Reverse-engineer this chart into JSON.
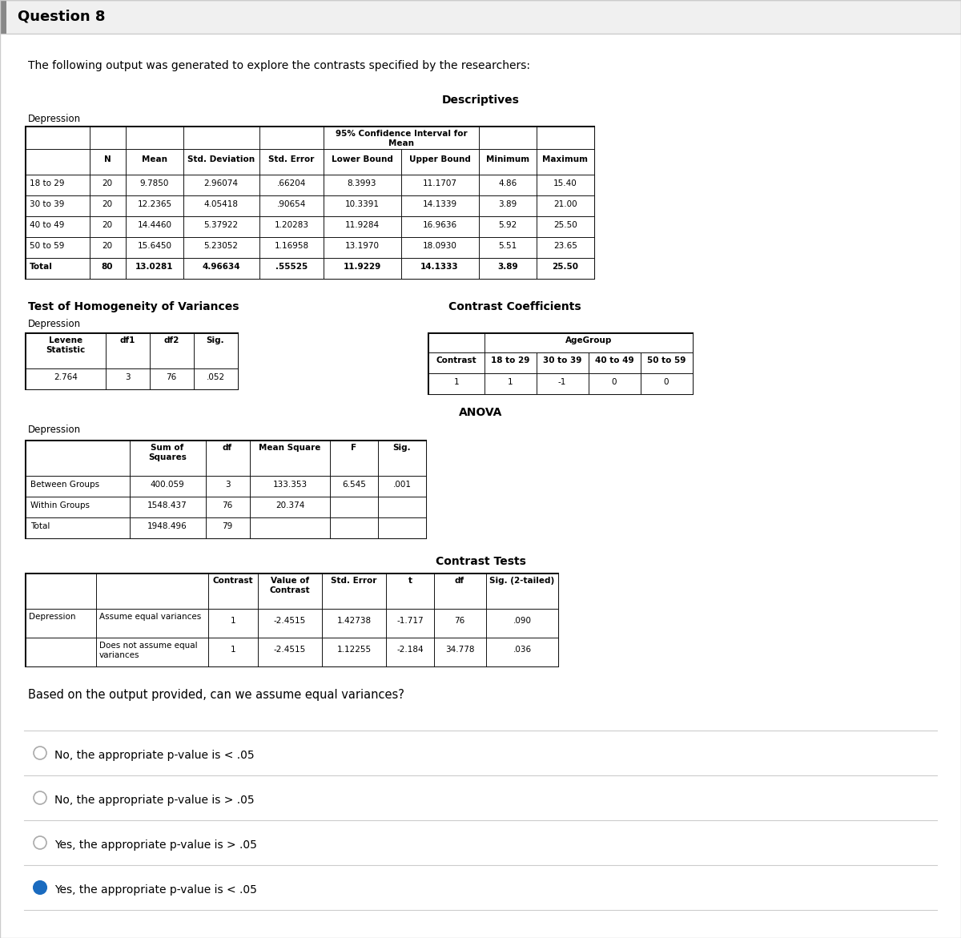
{
  "title": "Question 8",
  "intro_text": "The following output was generated to explore the contrasts specified by the researchers:",
  "descriptives_title": "Descriptives",
  "descriptives_label": "Depression",
  "desc_rows": [
    [
      "18 to 29",
      "20",
      "9.7850",
      "2.96074",
      ".66204",
      "8.3993",
      "11.1707",
      "4.86",
      "15.40"
    ],
    [
      "30 to 39",
      "20",
      "12.2365",
      "4.05418",
      ".90654",
      "10.3391",
      "14.1339",
      "3.89",
      "21.00"
    ],
    [
      "40 to 49",
      "20",
      "14.4460",
      "5.37922",
      "1.20283",
      "11.9284",
      "16.9636",
      "5.92",
      "25.50"
    ],
    [
      "50 to 59",
      "20",
      "15.6450",
      "5.23052",
      "1.16958",
      "13.1970",
      "18.0930",
      "5.51",
      "23.65"
    ],
    [
      "Total",
      "80",
      "13.0281",
      "4.96634",
      ".55525",
      "11.9229",
      "14.1333",
      "3.89",
      "25.50"
    ]
  ],
  "homogeneity_title": "Test of Homogeneity of Variances",
  "homogeneity_label": "Depression",
  "homogeneity_headers": [
    "Levene\nStatistic",
    "df1",
    "df2",
    "Sig."
  ],
  "homogeneity_row": [
    "2.764",
    "3",
    "76",
    ".052"
  ],
  "contrast_coeff_title": "Contrast Coefficients",
  "contrast_coeff_subheader": "AgeGroup",
  "contrast_coeff_headers": [
    "Contrast",
    "18 to 29",
    "30 to 39",
    "40 to 49",
    "50 to 59"
  ],
  "contrast_coeff_row": [
    "1",
    "1",
    "-1",
    "0",
    "0"
  ],
  "anova_title": "ANOVA",
  "anova_label": "Depression",
  "anova_rows": [
    [
      "Between Groups",
      "400.059",
      "3",
      "133.353",
      "6.545",
      ".001"
    ],
    [
      "Within Groups",
      "1548.437",
      "76",
      "20.374",
      "",
      ""
    ],
    [
      "Total",
      "1948.496",
      "79",
      "",
      "",
      ""
    ]
  ],
  "contrast_tests_title": "Contrast Tests",
  "contrast_tests_rows": [
    [
      "Depression",
      "Assume equal variances",
      "1",
      "-2.4515",
      "1.42738",
      "-1.717",
      "76",
      ".090"
    ],
    [
      "",
      "Does not assume equal\nvariances",
      "1",
      "-2.4515",
      "1.12255",
      "-2.184",
      "34.778",
      ".036"
    ]
  ],
  "question": "Based on the output provided, can we assume equal variances?",
  "options": [
    {
      "text": "No, the appropriate p-value is < .05",
      "selected": false
    },
    {
      "text": "No, the appropriate p-value is > .05",
      "selected": false
    },
    {
      "text": "Yes, the appropriate p-value is > .05",
      "selected": false
    },
    {
      "text": "Yes, the appropriate p-value is < .05",
      "selected": true
    }
  ],
  "bg_color": "#ffffff",
  "selected_color": "#1a6bbf"
}
